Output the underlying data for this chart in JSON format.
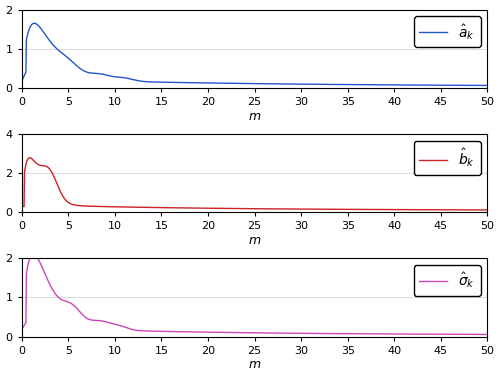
{
  "xlim": [
    0,
    50
  ],
  "xlabel": "m",
  "subplot1": {
    "ylim": [
      0,
      2
    ],
    "yticks": [
      0,
      1,
      2
    ],
    "color": "#2255cc",
    "label": "$\\hat{a}_k$"
  },
  "subplot2": {
    "ylim": [
      0,
      4
    ],
    "yticks": [
      0,
      2,
      4
    ],
    "color": "#cc2222",
    "label": "$\\hat{b}_k$"
  },
  "subplot3": {
    "ylim": [
      0,
      2
    ],
    "yticks": [
      0,
      1,
      2
    ],
    "color": "#cc44bb",
    "label": "$\\hat{\\sigma}_k$"
  },
  "xticks": [
    0,
    5,
    10,
    15,
    20,
    25,
    30,
    35,
    40,
    45,
    50
  ],
  "figsize": [
    5.0,
    3.77
  ],
  "dpi": 100
}
